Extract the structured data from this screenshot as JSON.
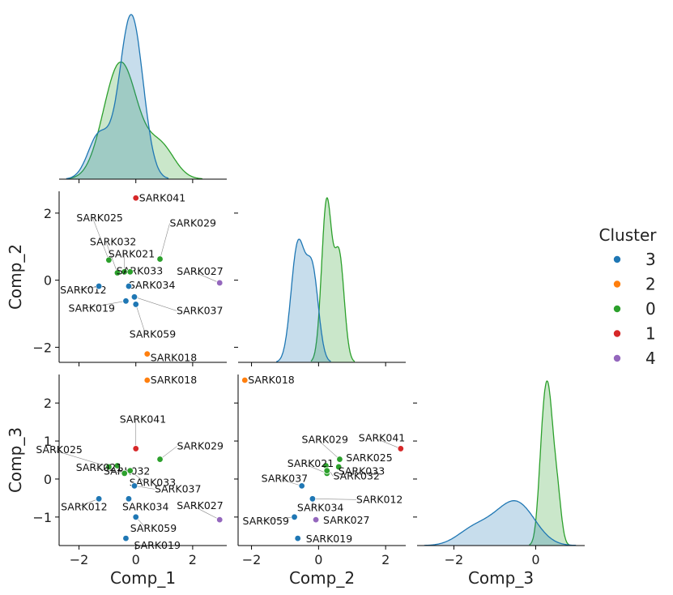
{
  "legend": {
    "title": "Cluster",
    "entries": [
      {
        "label": "3",
        "cluster": 3
      },
      {
        "label": "2",
        "cluster": 2
      },
      {
        "label": "0",
        "cluster": 0
      },
      {
        "label": "1",
        "cluster": 1
      },
      {
        "label": "4",
        "cluster": 4
      }
    ]
  },
  "colors": {
    "3": "#1f77b4",
    "2": "#ff7f0e",
    "0": "#2ca02c",
    "1": "#d62728",
    "4": "#9467bd"
  },
  "chart_data": {
    "type": "pairplot",
    "variables": [
      "Comp_1",
      "Comp_2",
      "Comp_3"
    ],
    "xlim": {
      "Comp_1": [
        -2.7,
        3.2
      ],
      "Comp_2": [
        -2.4,
        2.6
      ],
      "Comp_3": [
        -2.9,
        1.2
      ]
    },
    "ylim": {
      "Comp_2": [
        -2.45,
        2.65
      ],
      "Comp_3": [
        -1.75,
        2.75
      ]
    },
    "xticks": {
      "Comp_1": [
        -2,
        0,
        2
      ],
      "Comp_2": [
        -2,
        0,
        2
      ],
      "Comp_3": [
        -2,
        0
      ]
    },
    "yticks": {
      "Comp_2": [
        -2,
        0,
        2
      ],
      "Comp_3": [
        -1,
        0,
        1,
        2
      ]
    },
    "xlabels": [
      "Comp_1",
      "Comp_2",
      "Comp_3"
    ],
    "ylabels": [
      "Comp_2",
      "Comp_3"
    ],
    "points": [
      {
        "label": "SARK041",
        "cluster": 1,
        "c1": 0.0,
        "c2": 2.45,
        "c3": 0.8
      },
      {
        "label": "SARK018",
        "cluster": 2,
        "c1": 0.4,
        "c2": -2.2,
        "c3": 2.6
      },
      {
        "label": "SARK025",
        "cluster": 0,
        "c1": -0.95,
        "c2": 0.6,
        "c3": 0.32
      },
      {
        "label": "SARK032",
        "cluster": 0,
        "c1": -0.65,
        "c2": 0.22,
        "c3": 0.35
      },
      {
        "label": "SARK029",
        "cluster": 0,
        "c1": 0.85,
        "c2": 0.63,
        "c3": 0.52
      },
      {
        "label": "SARK021",
        "cluster": 0,
        "c1": -0.4,
        "c2": 0.25,
        "c3": 0.15
      },
      {
        "label": "SARK033",
        "cluster": 0,
        "c1": -0.2,
        "c2": 0.25,
        "c3": 0.22
      },
      {
        "label": "SARK027",
        "cluster": 4,
        "c1": 2.95,
        "c2": -0.08,
        "c3": -1.07
      },
      {
        "label": "SARK012",
        "cluster": 3,
        "c1": -1.3,
        "c2": -0.18,
        "c3": -0.52
      },
      {
        "label": "SARK034",
        "cluster": 3,
        "c1": -0.25,
        "c2": -0.18,
        "c3": -0.52
      },
      {
        "label": "SARK019",
        "cluster": 3,
        "c1": -0.35,
        "c2": -0.62,
        "c3": -1.56
      },
      {
        "label": "SARK037",
        "cluster": 3,
        "c1": -0.05,
        "c2": -0.5,
        "c3": -0.18
      },
      {
        "label": "SARK059",
        "cluster": 3,
        "c1": 0.0,
        "c2": -0.72,
        "c3": -1.0
      }
    ],
    "kde_groups": [
      0,
      3
    ]
  }
}
